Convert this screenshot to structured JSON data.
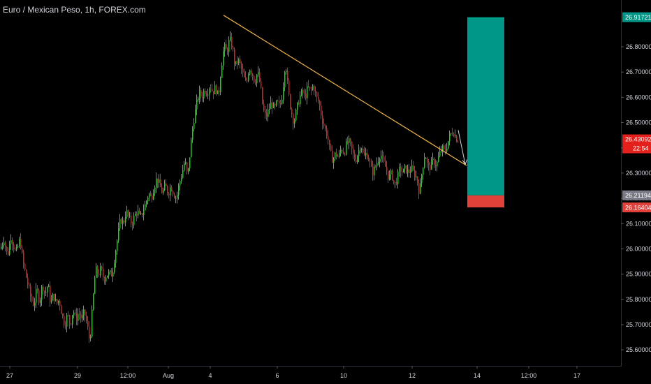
{
  "header": {
    "title": "Euro / Mexican Peso, 1h, FOREX.com"
  },
  "price_axis": {
    "last_price": "26.43092",
    "countdown": "22:54",
    "target_label": "26.91721",
    "entry_label": "26.21194",
    "stop_label": "26.16404"
  },
  "colors": {
    "background": "#000000",
    "up": "#00e600",
    "down": "#e0201b",
    "trendline": "#f0b44c",
    "target_zone": "#009688",
    "stop_zone": "#e2413a",
    "entry_badge": "#787b86",
    "target_badge": "#009688",
    "stop_badge": "#e2413a"
  },
  "chart_data": {
    "type": "candlestick",
    "title": "Euro / Mexican Peso, 1h, FOREX.com",
    "y_ticks": [
      "26.80000",
      "26.70000",
      "26.60000",
      "26.50000",
      "26.40000",
      "26.30000",
      "26.20000",
      "26.10000",
      "26.00000",
      "25.90000",
      "25.80000",
      "25.70000",
      "25.60000"
    ],
    "ylim": [
      25.57,
      26.93
    ],
    "x_ticks": [
      "27",
      "29",
      "12:00",
      "Aug",
      "4",
      "6",
      "10",
      "12",
      "14",
      "12:00",
      "17"
    ],
    "series_path": [
      [
        0,
        26.0
      ],
      [
        5,
        26.04
      ],
      [
        10,
        25.97
      ],
      [
        15,
        26.05
      ],
      [
        22,
        25.98
      ],
      [
        28,
        26.04
      ],
      [
        32,
        25.95
      ],
      [
        36,
        25.9
      ],
      [
        40,
        25.85
      ],
      [
        44,
        25.8
      ],
      [
        48,
        25.78
      ],
      [
        52,
        25.84
      ],
      [
        56,
        25.79
      ],
      [
        60,
        25.86
      ],
      [
        64,
        25.82
      ],
      [
        68,
        25.86
      ],
      [
        72,
        25.78
      ],
      [
        76,
        25.82
      ],
      [
        80,
        25.78
      ],
      [
        84,
        25.8
      ],
      [
        88,
        25.74
      ],
      [
        92,
        25.7
      ],
      [
        96,
        25.74
      ],
      [
        100,
        25.7
      ],
      [
        104,
        25.76
      ],
      [
        108,
        25.72
      ],
      [
        112,
        25.75
      ],
      [
        116,
        25.72
      ],
      [
        120,
        25.75
      ],
      [
        124,
        25.7
      ],
      [
        128,
        25.63
      ],
      [
        132,
        25.78
      ],
      [
        136,
        25.92
      ],
      [
        140,
        25.9
      ],
      [
        144,
        25.92
      ],
      [
        148,
        25.88
      ],
      [
        152,
        25.9
      ],
      [
        156,
        25.9
      ],
      [
        160,
        25.9
      ],
      [
        164,
        25.98
      ],
      [
        168,
        26.05
      ],
      [
        172,
        26.12
      ],
      [
        176,
        26.1
      ],
      [
        180,
        26.15
      ],
      [
        184,
        26.12
      ],
      [
        188,
        26.1
      ],
      [
        192,
        26.13
      ],
      [
        196,
        26.15
      ],
      [
        200,
        26.12
      ],
      [
        204,
        26.15
      ],
      [
        208,
        26.18
      ],
      [
        212,
        26.22
      ],
      [
        216,
        26.2
      ],
      [
        220,
        26.25
      ],
      [
        224,
        26.28
      ],
      [
        228,
        26.25
      ],
      [
        232,
        26.22
      ],
      [
        236,
        26.25
      ],
      [
        240,
        26.22
      ],
      [
        244,
        26.25
      ],
      [
        248,
        26.22
      ],
      [
        252,
        26.2
      ],
      [
        256,
        26.26
      ],
      [
        260,
        26.3
      ],
      [
        264,
        26.35
      ],
      [
        268,
        26.28
      ],
      [
        272,
        26.4
      ],
      [
        276,
        26.5
      ],
      [
        280,
        26.56
      ],
      [
        284,
        26.62
      ],
      [
        288,
        26.6
      ],
      [
        292,
        26.63
      ],
      [
        296,
        26.62
      ],
      [
        300,
        26.65
      ],
      [
        304,
        26.62
      ],
      [
        308,
        26.64
      ],
      [
        312,
        26.6
      ],
      [
        316,
        26.72
      ],
      [
        320,
        26.8
      ],
      [
        324,
        26.78
      ],
      [
        328,
        26.83
      ],
      [
        332,
        26.8
      ],
      [
        336,
        26.72
      ],
      [
        340,
        26.75
      ],
      [
        344,
        26.72
      ],
      [
        348,
        26.68
      ],
      [
        352,
        26.65
      ],
      [
        356,
        26.72
      ],
      [
        360,
        26.7
      ],
      [
        364,
        26.66
      ],
      [
        368,
        26.7
      ],
      [
        372,
        26.65
      ],
      [
        376,
        26.55
      ],
      [
        380,
        26.52
      ],
      [
        384,
        26.55
      ],
      [
        388,
        26.58
      ],
      [
        392,
        26.55
      ],
      [
        396,
        26.58
      ],
      [
        400,
        26.56
      ],
      [
        404,
        26.62
      ],
      [
        408,
        26.75
      ],
      [
        412,
        26.62
      ],
      [
        416,
        26.55
      ],
      [
        420,
        26.5
      ],
      [
        424,
        26.55
      ],
      [
        428,
        26.6
      ],
      [
        432,
        26.62
      ],
      [
        436,
        26.6
      ],
      [
        440,
        26.64
      ],
      [
        444,
        26.62
      ],
      [
        448,
        26.65
      ],
      [
        452,
        26.6
      ],
      [
        456,
        26.58
      ],
      [
        460,
        26.52
      ],
      [
        464,
        26.48
      ],
      [
        468,
        26.45
      ],
      [
        472,
        26.38
      ],
      [
        476,
        26.35
      ],
      [
        480,
        26.38
      ],
      [
        484,
        26.36
      ],
      [
        488,
        26.4
      ],
      [
        492,
        26.38
      ],
      [
        496,
        26.42
      ],
      [
        500,
        26.42
      ],
      [
        504,
        26.38
      ],
      [
        508,
        26.35
      ],
      [
        512,
        26.38
      ],
      [
        516,
        26.42
      ],
      [
        520,
        26.36
      ],
      [
        524,
        26.38
      ],
      [
        528,
        26.35
      ],
      [
        532,
        26.3
      ],
      [
        536,
        26.32
      ],
      [
        540,
        26.35
      ],
      [
        544,
        26.38
      ],
      [
        548,
        26.34
      ],
      [
        552,
        26.32
      ],
      [
        556,
        26.28
      ],
      [
        560,
        26.3
      ],
      [
        564,
        26.25
      ],
      [
        568,
        26.28
      ],
      [
        572,
        26.32
      ],
      [
        576,
        26.3
      ],
      [
        580,
        26.32
      ],
      [
        584,
        26.3
      ],
      [
        588,
        26.32
      ],
      [
        592,
        26.3
      ],
      [
        596,
        26.28
      ],
      [
        600,
        26.22
      ],
      [
        604,
        26.32
      ],
      [
        608,
        26.38
      ],
      [
        612,
        26.32
      ],
      [
        616,
        26.33
      ],
      [
        620,
        26.35
      ],
      [
        624,
        26.33
      ],
      [
        628,
        26.37
      ],
      [
        632,
        26.4
      ],
      [
        636,
        26.38
      ],
      [
        640,
        26.42
      ],
      [
        644,
        26.45
      ],
      [
        648,
        26.47
      ],
      [
        652,
        26.44
      ],
      [
        656,
        26.43
      ]
    ],
    "trendline": [
      [
        320,
        26.925
      ],
      [
        668,
        26.33
      ]
    ],
    "projection_arrow": [
      [
        656,
        26.47
      ],
      [
        666,
        26.335
      ]
    ],
    "position_tool": {
      "x0": 669,
      "x1": 722,
      "target": 26.91721,
      "entry": 26.21194,
      "stop": 26.16404
    }
  }
}
